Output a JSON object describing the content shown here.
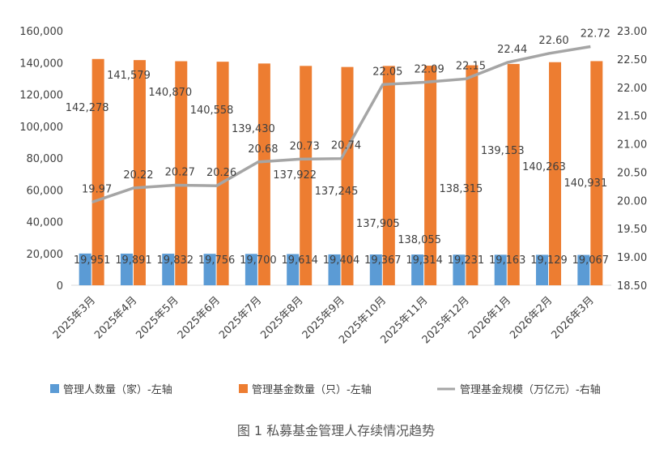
{
  "chart_data": {
    "type": "bar+line",
    "caption": "图 1  私募基金管理人存续情况趋势",
    "categories": [
      "2025年3月",
      "2025年4月",
      "2025年5月",
      "2025年6月",
      "2025年7月",
      "2025年8月",
      "2025年9月",
      "2025年10月",
      "2025年11月",
      "2025年12月",
      "2026年1月",
      "2026年2月",
      "2026年3月"
    ],
    "series": [
      {
        "name": "管理人数量（家）-左轴",
        "type": "bar",
        "axis": "left",
        "color": "#5b9bd5",
        "values": [
          19951,
          19891,
          19832,
          19756,
          19700,
          19614,
          19404,
          19367,
          19314,
          19231,
          19163,
          19129,
          19067
        ]
      },
      {
        "name": "管理基金数量（只）-左轴",
        "type": "bar",
        "axis": "left",
        "color": "#ed7d31",
        "values": [
          142278,
          141579,
          140870,
          140558,
          139430,
          137922,
          137245,
          137905,
          138055,
          138315,
          139153,
          140263,
          140931
        ]
      },
      {
        "name": "管理基金规模（万亿元）-右轴",
        "type": "line",
        "axis": "right",
        "color": "#a5a5a5",
        "values": [
          19.97,
          20.22,
          20.27,
          20.26,
          20.68,
          20.73,
          20.74,
          22.05,
          22.09,
          22.15,
          22.44,
          22.6,
          22.72
        ]
      }
    ],
    "left_axis": {
      "range": [
        0,
        160000
      ],
      "ticks": [
        "0",
        "20,000",
        "40,000",
        "60,000",
        "80,000",
        "100,000",
        "120,000",
        "140,000",
        "160,000"
      ]
    },
    "right_axis": {
      "range": [
        18.5,
        23.0
      ],
      "ticks": [
        "18.50",
        "19.00",
        "19.50",
        "20.00",
        "20.50",
        "21.00",
        "21.50",
        "22.00",
        "22.50",
        "23.00"
      ]
    },
    "grid": false,
    "legend": "bottom"
  }
}
